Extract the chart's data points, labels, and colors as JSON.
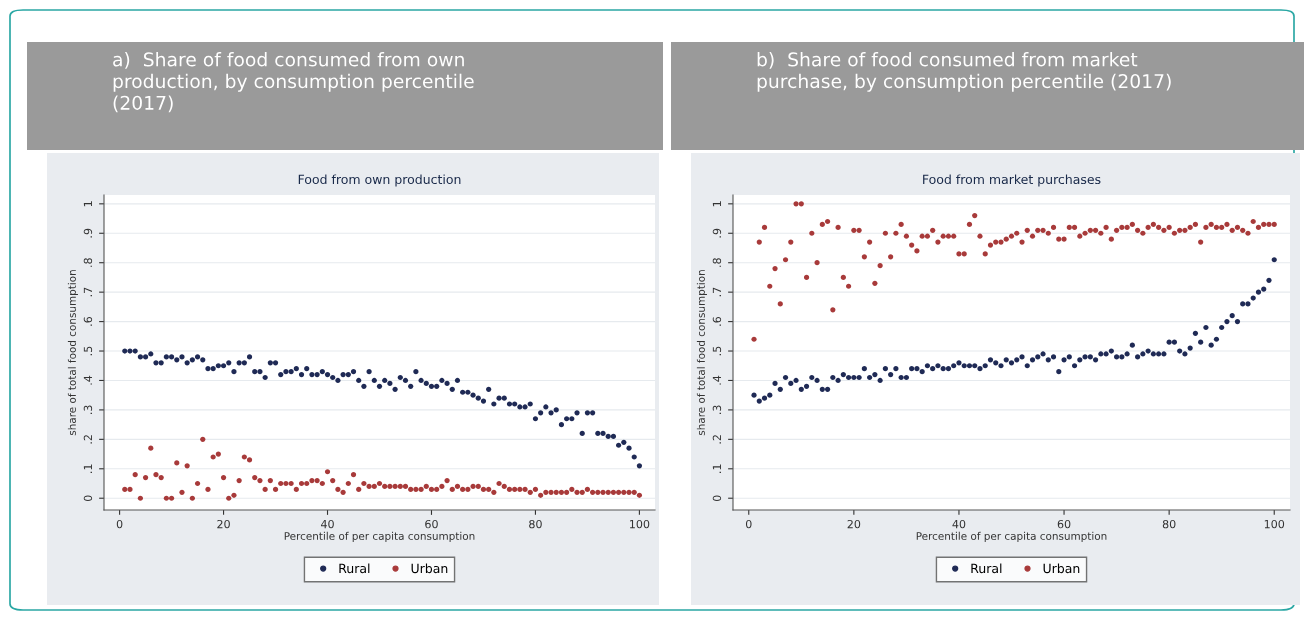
{
  "chart_data": [
    {
      "type": "scatter",
      "title": "a)  Share of food consumed from own\nproduction, by consumption percentile\n(2017)",
      "subtitle": "Food from own production",
      "xlabel": "Percentile of per capita consumption",
      "ylabel": "share of total food consumption",
      "x": [
        1,
        2,
        3,
        4,
        5,
        6,
        7,
        8,
        9,
        10,
        11,
        12,
        13,
        14,
        15,
        16,
        17,
        18,
        19,
        20,
        21,
        22,
        23,
        24,
        25,
        26,
        27,
        28,
        29,
        30,
        31,
        32,
        33,
        34,
        35,
        36,
        37,
        38,
        39,
        40,
        41,
        42,
        43,
        44,
        45,
        46,
        47,
        48,
        49,
        50,
        51,
        52,
        53,
        54,
        55,
        56,
        57,
        58,
        59,
        60,
        61,
        62,
        63,
        64,
        65,
        66,
        67,
        68,
        69,
        70,
        71,
        72,
        73,
        74,
        75,
        76,
        77,
        78,
        79,
        80,
        81,
        82,
        83,
        84,
        85,
        86,
        87,
        88,
        89,
        90,
        91,
        92,
        93,
        94,
        95,
        96,
        97,
        98,
        99,
        100
      ],
      "series": [
        {
          "name": "Rural",
          "color": "#1f2a55",
          "values": [
            0.5,
            0.5,
            0.5,
            0.48,
            0.48,
            0.49,
            0.46,
            0.46,
            0.48,
            0.48,
            0.47,
            0.48,
            0.46,
            0.47,
            0.48,
            0.47,
            0.44,
            0.44,
            0.45,
            0.45,
            0.46,
            0.43,
            0.46,
            0.46,
            0.48,
            0.43,
            0.43,
            0.41,
            0.46,
            0.46,
            0.42,
            0.43,
            0.43,
            0.44,
            0.42,
            0.44,
            0.42,
            0.42,
            0.43,
            0.42,
            0.41,
            0.4,
            0.42,
            0.42,
            0.43,
            0.4,
            0.38,
            0.43,
            0.4,
            0.38,
            0.4,
            0.39,
            0.37,
            0.41,
            0.4,
            0.38,
            0.43,
            0.4,
            0.39,
            0.38,
            0.38,
            0.4,
            0.39,
            0.37,
            0.4,
            0.36,
            0.36,
            0.35,
            0.34,
            0.33,
            0.37,
            0.32,
            0.34,
            0.34,
            0.32,
            0.32,
            0.31,
            0.31,
            0.32,
            0.27,
            0.29,
            0.31,
            0.29,
            0.3,
            0.25,
            0.27,
            0.27,
            0.29,
            0.22,
            0.29,
            0.29,
            0.22,
            0.22,
            0.21,
            0.21,
            0.18,
            0.19,
            0.17,
            0.14,
            0.11
          ]
        },
        {
          "name": "Urban",
          "color": "#a83a3a",
          "values": [
            0.03,
            0.03,
            0.08,
            0.0,
            0.07,
            0.17,
            0.08,
            0.07,
            0.0,
            0.0,
            0.12,
            0.02,
            0.11,
            0.0,
            0.05,
            0.2,
            0.03,
            0.14,
            0.15,
            0.07,
            0.0,
            0.01,
            0.06,
            0.14,
            0.13,
            0.07,
            0.06,
            0.03,
            0.06,
            0.03,
            0.05,
            0.05,
            0.05,
            0.03,
            0.05,
            0.05,
            0.06,
            0.06,
            0.05,
            0.09,
            0.06,
            0.03,
            0.02,
            0.05,
            0.08,
            0.03,
            0.05,
            0.04,
            0.04,
            0.05,
            0.04,
            0.04,
            0.04,
            0.04,
            0.04,
            0.03,
            0.03,
            0.03,
            0.04,
            0.03,
            0.03,
            0.04,
            0.06,
            0.03,
            0.04,
            0.03,
            0.03,
            0.04,
            0.04,
            0.03,
            0.03,
            0.02,
            0.05,
            0.04,
            0.03,
            0.03,
            0.03,
            0.03,
            0.02,
            0.03,
            0.01,
            0.02,
            0.02,
            0.02,
            0.02,
            0.02,
            0.03,
            0.02,
            0.02,
            0.03,
            0.02,
            0.02,
            0.02,
            0.02,
            0.02,
            0.02,
            0.02,
            0.02,
            0.02,
            0.01
          ]
        }
      ],
      "xlim": [
        -3,
        103
      ],
      "xticks": [
        0,
        20,
        40,
        60,
        80,
        100
      ],
      "ylim": [
        -0.04,
        1.03
      ],
      "yticks": [
        0,
        {
          "value": 0.1,
          "label": ".1"
        },
        {
          "value": 0.2,
          "label": ".2"
        },
        {
          "value": 0.3,
          "label": ".3"
        },
        {
          "value": 0.4,
          "label": ".4"
        },
        {
          "value": 0.5,
          "label": ".5"
        },
        {
          "value": 0.6,
          "label": ".6"
        },
        {
          "value": 0.7,
          "label": ".7"
        },
        {
          "value": 0.8,
          "label": ".8"
        },
        {
          "value": 0.9,
          "label": ".9"
        },
        1
      ],
      "grid": "y",
      "legend": "bottom",
      "marker": "circle"
    },
    {
      "type": "scatter",
      "title": "b)  Share of food consumed from market\npurchase, by consumption percentile (2017)",
      "subtitle": "Food from market purchases",
      "xlabel": "Percentile of per capita consumption",
      "ylabel": "share of total food consumption",
      "x": [
        1,
        2,
        3,
        4,
        5,
        6,
        7,
        8,
        9,
        10,
        11,
        12,
        13,
        14,
        15,
        16,
        17,
        18,
        19,
        20,
        21,
        22,
        23,
        24,
        25,
        26,
        27,
        28,
        29,
        30,
        31,
        32,
        33,
        34,
        35,
        36,
        37,
        38,
        39,
        40,
        41,
        42,
        43,
        44,
        45,
        46,
        47,
        48,
        49,
        50,
        51,
        52,
        53,
        54,
        55,
        56,
        57,
        58,
        59,
        60,
        61,
        62,
        63,
        64,
        65,
        66,
        67,
        68,
        69,
        70,
        71,
        72,
        73,
        74,
        75,
        76,
        77,
        78,
        79,
        80,
        81,
        82,
        83,
        84,
        85,
        86,
        87,
        88,
        89,
        90,
        91,
        92,
        93,
        94,
        95,
        96,
        97,
        98,
        99,
        100
      ],
      "series": [
        {
          "name": "Rural",
          "color": "#1f2a55",
          "values": [
            0.35,
            0.33,
            0.34,
            0.35,
            0.39,
            0.37,
            0.41,
            0.39,
            0.4,
            0.37,
            0.38,
            0.41,
            0.4,
            0.37,
            0.37,
            0.41,
            0.4,
            0.42,
            0.41,
            0.41,
            0.41,
            0.44,
            0.41,
            0.42,
            0.4,
            0.44,
            0.42,
            0.44,
            0.41,
            0.41,
            0.44,
            0.44,
            0.43,
            0.45,
            0.44,
            0.45,
            0.44,
            0.44,
            0.45,
            0.46,
            0.45,
            0.45,
            0.45,
            0.44,
            0.45,
            0.47,
            0.46,
            0.45,
            0.47,
            0.46,
            0.47,
            0.48,
            0.45,
            0.47,
            0.48,
            0.49,
            0.47,
            0.48,
            0.43,
            0.47,
            0.48,
            0.45,
            0.47,
            0.48,
            0.48,
            0.47,
            0.49,
            0.49,
            0.5,
            0.48,
            0.48,
            0.49,
            0.52,
            0.48,
            0.49,
            0.5,
            0.49,
            0.49,
            0.49,
            0.53,
            0.53,
            0.5,
            0.49,
            0.51,
            0.56,
            0.53,
            0.58,
            0.52,
            0.54,
            0.58,
            0.6,
            0.62,
            0.6,
            0.66,
            0.66,
            0.68,
            0.7,
            0.71,
            0.74,
            0.81
          ]
        },
        {
          "name": "Urban",
          "color": "#a83a3a",
          "values": [
            0.54,
            0.87,
            0.92,
            0.72,
            0.78,
            0.66,
            0.81,
            0.87,
            1.0,
            1.0,
            0.75,
            0.9,
            0.8,
            0.93,
            0.94,
            0.64,
            0.92,
            0.75,
            0.72,
            0.91,
            0.91,
            0.82,
            0.87,
            0.73,
            0.79,
            0.9,
            0.82,
            0.9,
            0.93,
            0.89,
            0.86,
            0.84,
            0.89,
            0.89,
            0.91,
            0.87,
            0.89,
            0.89,
            0.89,
            0.83,
            0.83,
            0.93,
            0.96,
            0.89,
            0.83,
            0.86,
            0.87,
            0.87,
            0.88,
            0.89,
            0.9,
            0.87,
            0.91,
            0.89,
            0.91,
            0.91,
            0.9,
            0.92,
            0.88,
            0.88,
            0.92,
            0.92,
            0.89,
            0.9,
            0.91,
            0.91,
            0.9,
            0.92,
            0.88,
            0.91,
            0.92,
            0.92,
            0.93,
            0.91,
            0.9,
            0.92,
            0.93,
            0.92,
            0.91,
            0.92,
            0.9,
            0.91,
            0.91,
            0.92,
            0.93,
            0.87,
            0.92,
            0.93,
            0.92,
            0.92,
            0.93,
            0.91,
            0.92,
            0.91,
            0.9,
            0.94,
            0.92,
            0.93,
            0.93,
            0.93
          ]
        }
      ],
      "xlim": [
        -3,
        103
      ],
      "xticks": [
        0,
        20,
        40,
        60,
        80,
        100
      ],
      "ylim": [
        -0.04,
        1.03
      ],
      "yticks": [
        0,
        {
          "value": 0.1,
          "label": ".1"
        },
        {
          "value": 0.2,
          "label": ".2"
        },
        {
          "value": 0.3,
          "label": ".3"
        },
        {
          "value": 0.4,
          "label": ".4"
        },
        {
          "value": 0.5,
          "label": ".5"
        },
        {
          "value": 0.6,
          "label": ".6"
        },
        {
          "value": 0.7,
          "label": ".7"
        },
        {
          "value": 0.8,
          "label": ".8"
        },
        {
          "value": 0.9,
          "label": ".9"
        },
        1
      ],
      "grid": "y",
      "legend": "bottom",
      "marker": "circle"
    }
  ]
}
